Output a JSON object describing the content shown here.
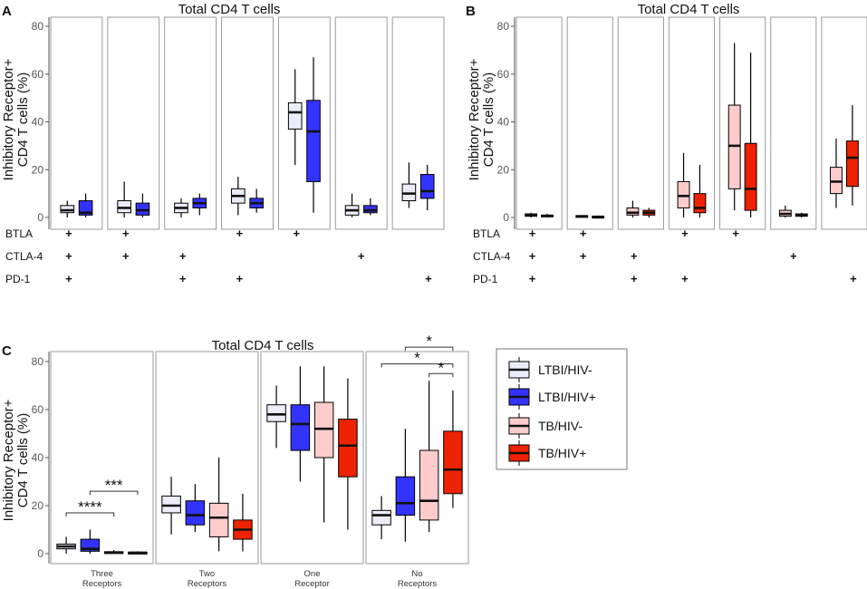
{
  "colors": {
    "LTBI/HIV-": "#ececfb",
    "LTBI/HIV+": "#3333ff",
    "TB/HIV-": "#ffcccc",
    "TB/HIV+": "#ee2200"
  },
  "legend": [
    "LTBI/HIV-",
    "LTBI/HIV+",
    "TB/HIV-",
    "TB/HIV+"
  ],
  "chart_data": [
    {
      "panel": "A",
      "type": "boxplot",
      "title": "Total CD4 T cells",
      "ylabel": "Inhibitory Receptor+ CD4 T cells (%)",
      "ylim": [
        0,
        80
      ],
      "yticks": [
        0,
        20,
        40,
        60,
        80
      ],
      "groups": [
        "LTBI/HIV-",
        "LTBI/HIV+"
      ],
      "marker_rows": [
        "BTLA",
        "CTLA-4",
        "PD-1"
      ],
      "categories": [
        {
          "markers": [
            "+",
            "+",
            "+"
          ],
          "boxes": [
            {
              "group": "LTBI/HIV-",
              "min": 0,
              "q1": 2,
              "median": 3,
              "q3": 5,
              "max": 7
            },
            {
              "group": "LTBI/HIV+",
              "min": 0,
              "q1": 1,
              "median": 2,
              "q3": 7,
              "max": 10
            }
          ]
        },
        {
          "markers": [
            "+",
            "+",
            ""
          ],
          "boxes": [
            {
              "group": "LTBI/HIV-",
              "min": 0,
              "q1": 2,
              "median": 4,
              "q3": 7,
              "max": 15
            },
            {
              "group": "LTBI/HIV+",
              "min": 0,
              "q1": 1,
              "median": 3,
              "q3": 6,
              "max": 10
            }
          ]
        },
        {
          "markers": [
            "",
            "+",
            "+"
          ],
          "boxes": [
            {
              "group": "LTBI/HIV-",
              "min": 0,
              "q1": 2,
              "median": 4,
              "q3": 6,
              "max": 8
            },
            {
              "group": "LTBI/HIV+",
              "min": 1,
              "q1": 4,
              "median": 6,
              "q3": 8,
              "max": 10
            }
          ]
        },
        {
          "markers": [
            "+",
            "",
            "+"
          ],
          "boxes": [
            {
              "group": "LTBI/HIV-",
              "min": 1,
              "q1": 6,
              "median": 9,
              "q3": 12,
              "max": 17
            },
            {
              "group": "LTBI/HIV+",
              "min": 2,
              "q1": 4,
              "median": 6,
              "q3": 8,
              "max": 12
            }
          ]
        },
        {
          "markers": [
            "+",
            "",
            ""
          ],
          "boxes": [
            {
              "group": "LTBI/HIV-",
              "min": 22,
              "q1": 37,
              "median": 44,
              "q3": 48,
              "max": 62
            },
            {
              "group": "LTBI/HIV+",
              "min": 2,
              "q1": 15,
              "median": 36,
              "q3": 49,
              "max": 67
            }
          ]
        },
        {
          "markers": [
            "",
            "+",
            ""
          ],
          "boxes": [
            {
              "group": "LTBI/HIV-",
              "min": 0,
              "q1": 1,
              "median": 3,
              "q3": 5,
              "max": 10
            },
            {
              "group": "LTBI/HIV+",
              "min": 1,
              "q1": 2,
              "median": 3,
              "q3": 5,
              "max": 8
            }
          ]
        },
        {
          "markers": [
            "",
            "",
            "+"
          ],
          "boxes": [
            {
              "group": "LTBI/HIV-",
              "min": 4,
              "q1": 7,
              "median": 10,
              "q3": 14,
              "max": 23
            },
            {
              "group": "LTBI/HIV+",
              "min": 3,
              "q1": 8,
              "median": 11,
              "q3": 18,
              "max": 22
            }
          ]
        }
      ]
    },
    {
      "panel": "B",
      "type": "boxplot",
      "title": "Total CD4 T cells",
      "ylabel": "Inhibitory Receptor+ CD4 T cells (%)",
      "ylim": [
        0,
        80
      ],
      "yticks": [
        0,
        20,
        40,
        60,
        80
      ],
      "groups": [
        "TB/HIV-",
        "TB/HIV+"
      ],
      "marker_rows": [
        "BTLA",
        "CTLA-4",
        "PD-1"
      ],
      "categories": [
        {
          "markers": [
            "+",
            "+",
            "+"
          ],
          "boxes": [
            {
              "group": "TB/HIV-",
              "min": 0,
              "q1": 0.5,
              "median": 1,
              "q3": 1.5,
              "max": 2
            },
            {
              "group": "TB/HIV+",
              "min": 0,
              "q1": 0.3,
              "median": 0.7,
              "q3": 1,
              "max": 1.5
            }
          ]
        },
        {
          "markers": [
            "+",
            "+",
            ""
          ],
          "boxes": [
            {
              "group": "TB/HIV-",
              "min": 0,
              "q1": 0.2,
              "median": 0.5,
              "q3": 0.8,
              "max": 1
            },
            {
              "group": "TB/HIV+",
              "min": 0,
              "q1": 0.1,
              "median": 0.3,
              "q3": 0.5,
              "max": 0.8
            }
          ]
        },
        {
          "markers": [
            "",
            "+",
            "+"
          ],
          "boxes": [
            {
              "group": "TB/HIV-",
              "min": 0,
              "q1": 1,
              "median": 2,
              "q3": 4,
              "max": 7
            },
            {
              "group": "TB/HIV+",
              "min": 0,
              "q1": 1,
              "median": 2,
              "q3": 3,
              "max": 4
            }
          ]
        },
        {
          "markers": [
            "+",
            "",
            "+"
          ],
          "boxes": [
            {
              "group": "TB/HIV-",
              "min": 0,
              "q1": 4,
              "median": 9,
              "q3": 15,
              "max": 27
            },
            {
              "group": "TB/HIV+",
              "min": 0,
              "q1": 2,
              "median": 4,
              "q3": 10,
              "max": 22
            }
          ]
        },
        {
          "markers": [
            "+",
            "",
            ""
          ],
          "boxes": [
            {
              "group": "TB/HIV-",
              "min": 3,
              "q1": 12,
              "median": 30,
              "q3": 47,
              "max": 73
            },
            {
              "group": "TB/HIV+",
              "min": 0,
              "q1": 3,
              "median": 12,
              "q3": 31,
              "max": 69
            }
          ]
        },
        {
          "markers": [
            "",
            "+",
            ""
          ],
          "boxes": [
            {
              "group": "TB/HIV-",
              "min": 0,
              "q1": 0.5,
              "median": 1.5,
              "q3": 3,
              "max": 5
            },
            {
              "group": "TB/HIV+",
              "min": 0,
              "q1": 0.5,
              "median": 1,
              "q3": 1.5,
              "max": 2
            }
          ]
        },
        {
          "markers": [
            "",
            "",
            "+"
          ],
          "boxes": [
            {
              "group": "TB/HIV-",
              "min": 4,
              "q1": 10,
              "median": 15,
              "q3": 21,
              "max": 33
            },
            {
              "group": "TB/HIV+",
              "min": 5,
              "q1": 13,
              "median": 25,
              "q3": 32,
              "max": 47
            }
          ]
        }
      ]
    },
    {
      "panel": "C",
      "type": "boxplot",
      "title": "Total CD4 T cells",
      "ylabel": "Inhibitory Receptor+ CD4 T cells (%)",
      "ylim": [
        0,
        80
      ],
      "yticks": [
        0,
        20,
        40,
        60,
        80
      ],
      "groups": [
        "LTBI/HIV-",
        "LTBI/HIV+",
        "TB/HIV-",
        "TB/HIV+"
      ],
      "categories": [
        {
          "label": [
            "Three",
            "Receptors"
          ],
          "boxes": [
            {
              "group": "LTBI/HIV-",
              "min": 0,
              "q1": 2,
              "median": 3,
              "q3": 4,
              "max": 7
            },
            {
              "group": "LTBI/HIV+",
              "min": 0,
              "q1": 1,
              "median": 2,
              "q3": 6,
              "max": 10
            },
            {
              "group": "TB/HIV-",
              "min": 0,
              "q1": 0.3,
              "median": 0.5,
              "q3": 0.8,
              "max": 1.5
            },
            {
              "group": "TB/HIV+",
              "min": 0,
              "q1": 0.2,
              "median": 0.4,
              "q3": 0.6,
              "max": 1
            }
          ]
        },
        {
          "label": [
            "Two",
            "Receptors"
          ],
          "boxes": [
            {
              "group": "LTBI/HIV-",
              "min": 8,
              "q1": 17,
              "median": 20,
              "q3": 24,
              "max": 32
            },
            {
              "group": "LTBI/HIV+",
              "min": 9,
              "q1": 12,
              "median": 16,
              "q3": 22,
              "max": 29
            },
            {
              "group": "TB/HIV-",
              "min": 1,
              "q1": 7,
              "median": 15,
              "q3": 21,
              "max": 40
            },
            {
              "group": "TB/HIV+",
              "min": 1,
              "q1": 6,
              "median": 10,
              "q3": 14,
              "max": 25
            }
          ]
        },
        {
          "label": [
            "One",
            "Receptor"
          ],
          "boxes": [
            {
              "group": "LTBI/HIV-",
              "min": 44,
              "q1": 55,
              "median": 58,
              "q3": 62,
              "max": 70
            },
            {
              "group": "LTBI/HIV+",
              "min": 30,
              "q1": 43,
              "median": 54,
              "q3": 62,
              "max": 78
            },
            {
              "group": "TB/HIV-",
              "min": 13,
              "q1": 40,
              "median": 52,
              "q3": 63,
              "max": 78
            },
            {
              "group": "TB/HIV+",
              "min": 10,
              "q1": 32,
              "median": 45,
              "q3": 56,
              "max": 73
            }
          ]
        },
        {
          "label": [
            "No",
            "Receptors"
          ],
          "boxes": [
            {
              "group": "LTBI/HIV-",
              "min": 6,
              "q1": 12,
              "median": 16,
              "q3": 18,
              "max": 24
            },
            {
              "group": "LTBI/HIV+",
              "min": 5,
              "q1": 16,
              "median": 21,
              "q3": 32,
              "max": 52
            },
            {
              "group": "TB/HIV-",
              "min": 9,
              "q1": 14,
              "median": 22,
              "q3": 43,
              "max": 72
            },
            {
              "group": "TB/HIV+",
              "min": 19,
              "q1": 25,
              "median": 35,
              "q3": 51,
              "max": 68
            }
          ]
        }
      ],
      "significance": [
        {
          "label": "****",
          "category": 0,
          "from_group": 0,
          "to_group": 2,
          "y": 17
        },
        {
          "label": "***",
          "category": 0,
          "from_group": 1,
          "to_group": 3,
          "y": 26
        },
        {
          "label": "*",
          "category": 3,
          "from_group": 0,
          "to_group": 3,
          "y": 79
        },
        {
          "label": "*",
          "category": 3,
          "from_group": 1,
          "to_group": 3,
          "y": 86
        },
        {
          "label": "*",
          "category": 3,
          "from_group": 2,
          "to_group": 3,
          "y": 75
        }
      ]
    }
  ]
}
